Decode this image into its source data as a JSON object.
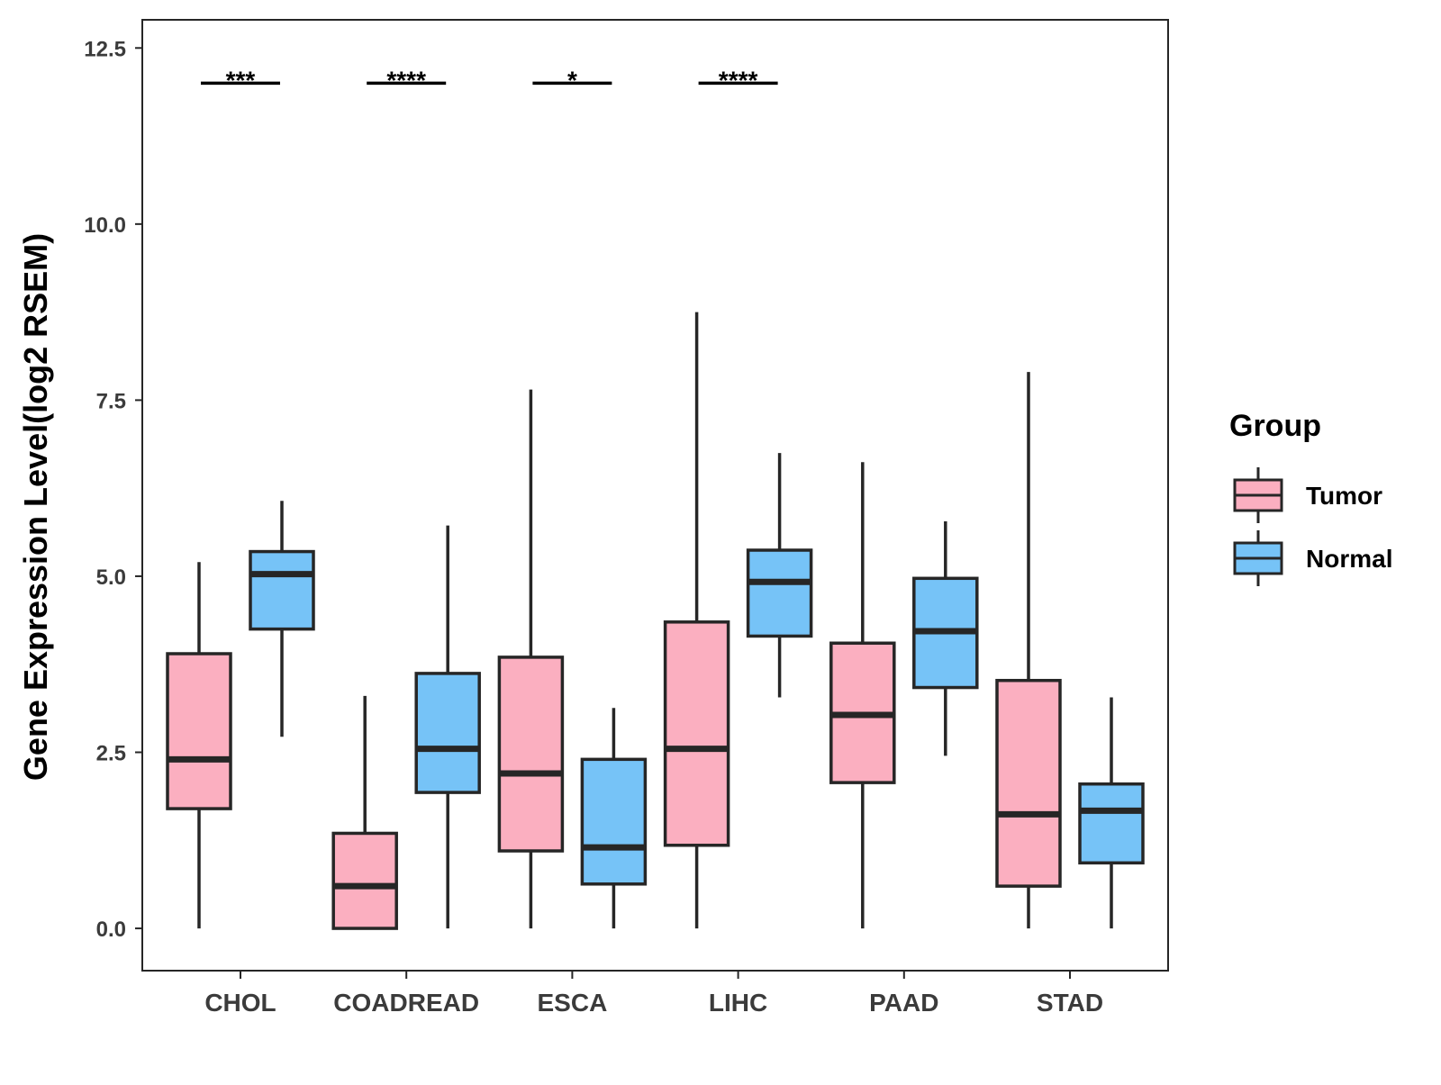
{
  "chart_data": {
    "type": "boxplot",
    "title": "",
    "xlabel": "",
    "ylabel": "Gene Expression Level(log2 RSEM)",
    "ylim": [
      -0.6,
      12.9
    ],
    "yticks": [
      0.0,
      2.5,
      5.0,
      7.5,
      10.0,
      12.5
    ],
    "ytick_labels": [
      "0.0",
      "2.5",
      "5.0",
      "7.5",
      "10.0",
      "12.5"
    ],
    "grid": false,
    "categories": [
      "CHOL",
      "COADREAD",
      "ESCA",
      "LIHC",
      "PAAD",
      "STAD"
    ],
    "legend": {
      "title": "Group",
      "position": "right",
      "entries": [
        "Tumor",
        "Normal"
      ]
    },
    "series": [
      {
        "name": "Tumor",
        "color": "#FBAFC0",
        "boxes": [
          {
            "category": "CHOL",
            "whisker_low": 0.0,
            "q1": 1.7,
            "median": 2.4,
            "q3": 3.9,
            "whisker_high": 5.2
          },
          {
            "category": "COADREAD",
            "whisker_low": 0.0,
            "q1": 0.0,
            "median": 0.6,
            "q3": 1.35,
            "whisker_high": 3.3
          },
          {
            "category": "ESCA",
            "whisker_low": 0.0,
            "q1": 1.1,
            "median": 2.2,
            "q3": 3.85,
            "whisker_high": 7.65
          },
          {
            "category": "LIHC",
            "whisker_low": 0.0,
            "q1": 1.18,
            "median": 2.55,
            "q3": 4.35,
            "whisker_high": 8.75
          },
          {
            "category": "PAAD",
            "whisker_low": 0.0,
            "q1": 2.07,
            "median": 3.03,
            "q3": 4.05,
            "whisker_high": 6.62
          },
          {
            "category": "STAD",
            "whisker_low": 0.0,
            "q1": 0.6,
            "median": 1.62,
            "q3": 3.52,
            "whisker_high": 7.9
          }
        ]
      },
      {
        "name": "Normal",
        "color": "#76C3F7",
        "boxes": [
          {
            "category": "CHOL",
            "whisker_low": 2.72,
            "q1": 4.25,
            "median": 5.03,
            "q3": 5.35,
            "whisker_high": 6.07
          },
          {
            "category": "COADREAD",
            "whisker_low": 0.0,
            "q1": 1.93,
            "median": 2.55,
            "q3": 3.62,
            "whisker_high": 5.72
          },
          {
            "category": "ESCA",
            "whisker_low": 0.0,
            "q1": 0.63,
            "median": 1.15,
            "q3": 2.4,
            "whisker_high": 3.13
          },
          {
            "category": "LIHC",
            "whisker_low": 3.28,
            "q1": 4.15,
            "median": 4.92,
            "q3": 5.37,
            "whisker_high": 6.75
          },
          {
            "category": "PAAD",
            "whisker_low": 2.45,
            "q1": 3.42,
            "median": 4.22,
            "q3": 4.97,
            "whisker_high": 5.78
          },
          {
            "category": "STAD",
            "whisker_low": 0.0,
            "q1": 0.93,
            "median": 1.67,
            "q3": 2.05,
            "whisker_high": 3.28
          }
        ]
      }
    ],
    "significance": [
      {
        "category": "CHOL",
        "label": "***",
        "y": 12.0
      },
      {
        "category": "COADREAD",
        "label": "****",
        "y": 12.0
      },
      {
        "category": "ESCA",
        "label": "*",
        "y": 12.0
      },
      {
        "category": "LIHC",
        "label": "****",
        "y": 12.0
      }
    ]
  }
}
